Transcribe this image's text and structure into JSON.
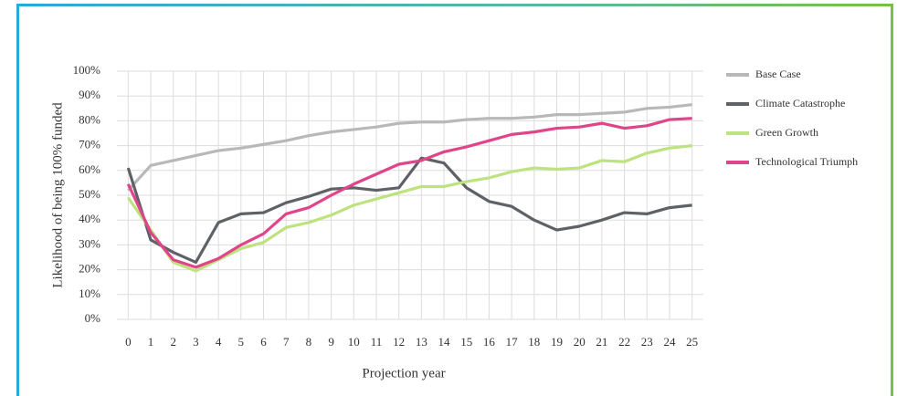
{
  "chart_data": {
    "type": "line",
    "x_label": "Projection year",
    "y_label": "Likelihood of being 100% funded",
    "x": [
      0,
      1,
      2,
      3,
      4,
      5,
      6,
      7,
      8,
      9,
      10,
      11,
      12,
      13,
      14,
      15,
      16,
      17,
      18,
      19,
      20,
      21,
      22,
      23,
      24,
      25
    ],
    "xlim": [
      -0.5,
      25.5
    ],
    "xticks": [
      0,
      1,
      2,
      3,
      4,
      5,
      6,
      7,
      8,
      9,
      10,
      11,
      12,
      13,
      14,
      15,
      16,
      17,
      18,
      19,
      20,
      21,
      22,
      23,
      24,
      25
    ],
    "ylim": [
      0,
      100
    ],
    "yticks": [
      {
        "value": 0,
        "label": "0%"
      },
      {
        "value": 10,
        "label": "10%"
      },
      {
        "value": 20,
        "label": "20%"
      },
      {
        "value": 30,
        "label": "30%"
      },
      {
        "value": 40,
        "label": "40%"
      },
      {
        "value": 50,
        "label": "50%"
      },
      {
        "value": 60,
        "label": "60%"
      },
      {
        "value": 70,
        "label": "70%"
      },
      {
        "value": 80,
        "label": "80%"
      },
      {
        "value": 90,
        "label": "90%"
      },
      {
        "value": 100,
        "label": "100%"
      }
    ],
    "grid": true,
    "legend": "right",
    "series": [
      {
        "name": "Base Case",
        "color": "#b8b8b8",
        "values": [
          52,
          62,
          64,
          66,
          68,
          69,
          70.5,
          72,
          74,
          75.5,
          76.5,
          77.5,
          79,
          79.5,
          79.5,
          80.5,
          81,
          81,
          81.5,
          82.5,
          82.5,
          83,
          83.5,
          85,
          85.5,
          86.5
        ]
      },
      {
        "name": "Climate Catastrophe",
        "color": "#5e6166",
        "values": [
          61,
          32,
          27,
          23,
          39,
          42.5,
          43,
          47,
          49.5,
          52.5,
          53,
          52,
          53,
          65,
          63,
          53,
          47.5,
          45.5,
          40,
          36,
          37.5,
          40,
          43,
          42.5,
          45,
          46
        ]
      },
      {
        "name": "Green Growth",
        "color": "#bde27e",
        "values": [
          49,
          36,
          23,
          19.5,
          24,
          28.5,
          31,
          37,
          39,
          42,
          46,
          48.5,
          51,
          53.5,
          53.5,
          55.5,
          57,
          59.5,
          61,
          60.5,
          61,
          64,
          63.5,
          67,
          69,
          70
        ]
      },
      {
        "name": "Technological Triumph",
        "color": "#e0458a",
        "values": [
          54.5,
          35,
          24,
          21,
          24.5,
          30,
          34.5,
          42.5,
          45,
          50,
          54.5,
          58.5,
          62.5,
          64,
          67.5,
          69.5,
          72,
          74.5,
          75.5,
          77,
          77.5,
          79,
          77,
          78,
          80.5,
          81
        ]
      }
    ]
  }
}
